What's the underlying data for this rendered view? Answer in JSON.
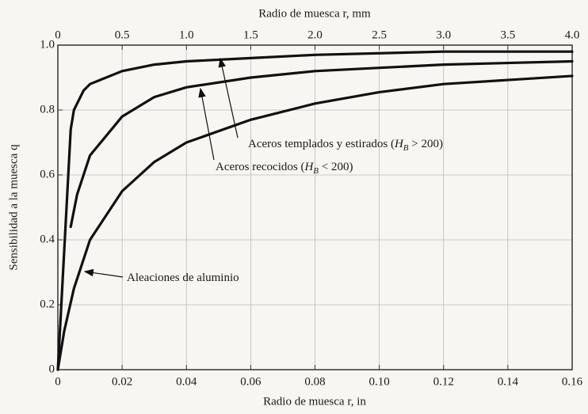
{
  "chart_data": {
    "type": "line",
    "xlabel": "Radio de muesca r, in",
    "ylabel": "Sensibilidad a la muesca q",
    "x2label": "Radio de muesca r, mm",
    "xlim": [
      0,
      0.16
    ],
    "xticks": [
      0,
      0.02,
      0.04,
      0.06,
      0.08,
      {
        "value": 0.1,
        "label": "0.10"
      },
      0.12,
      0.14,
      0.16
    ],
    "x2lim": [
      0,
      4.0
    ],
    "x2ticks": [
      0,
      0.5,
      {
        "value": 1,
        "label": "1.0"
      },
      1.5,
      {
        "value": 2,
        "label": "2.0"
      },
      2.5,
      {
        "value": 3,
        "label": "3.0"
      },
      3.5,
      {
        "value": 4,
        "label": "4.0"
      }
    ],
    "ylim": [
      0,
      1.0
    ],
    "yticks": [
      0,
      0.2,
      0.4,
      0.6,
      0.8,
      {
        "value": 1,
        "label": "1.0"
      }
    ],
    "grid": true,
    "series": [
      {
        "label": {
          "pre": "Aceros templados y estirados (",
          "var": "H",
          "sub": "B",
          "post": " > 200)"
        },
        "color": "#111111",
        "x": [
          0,
          0.004,
          0.005,
          0.008,
          0.01,
          0.02,
          0.03,
          0.04,
          0.06,
          0.08,
          0.12,
          0.16
        ],
        "values": [
          0,
          0.74,
          0.8,
          0.86,
          0.88,
          0.92,
          0.94,
          0.95,
          0.96,
          0.97,
          0.98,
          0.98
        ]
      },
      {
        "label": {
          "pre": "Aceros recocidos (",
          "var": "H",
          "sub": "B",
          "post": " <  200)"
        },
        "color": "#111111",
        "x": [
          0.004,
          0.006,
          0.01,
          0.02,
          0.03,
          0.04,
          0.06,
          0.08,
          0.1,
          0.12,
          0.16
        ],
        "values": [
          0.44,
          0.54,
          0.66,
          0.78,
          0.84,
          0.87,
          0.9,
          0.92,
          0.93,
          0.94,
          0.95
        ]
      },
      {
        "label": {
          "pre": "Aleaciones de aluminio"
        },
        "color": "#111111",
        "x": [
          0,
          0.002,
          0.005,
          0.01,
          0.02,
          0.03,
          0.04,
          0.06,
          0.08,
          0.1,
          0.12,
          0.16
        ],
        "values": [
          0,
          0.12,
          0.25,
          0.4,
          0.55,
          0.64,
          0.7,
          0.77,
          0.82,
          0.855,
          0.88,
          0.905
        ]
      }
    ]
  }
}
